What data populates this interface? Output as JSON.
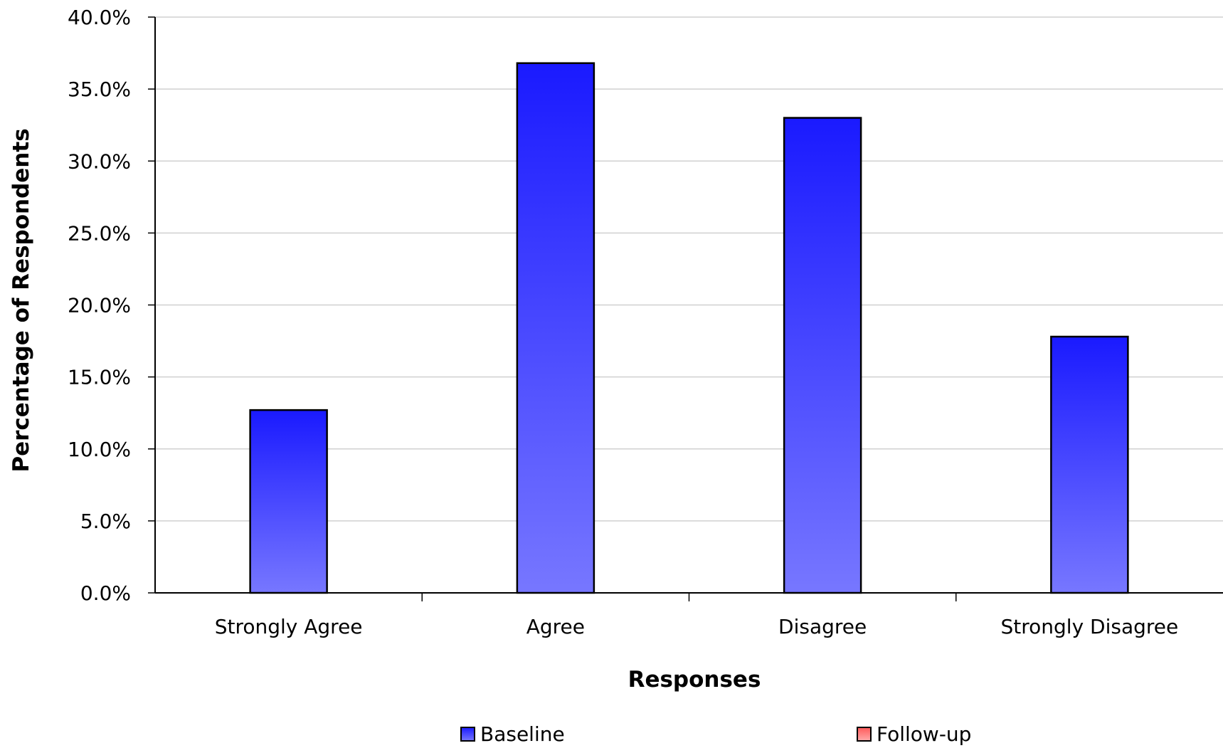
{
  "chart_data": {
    "type": "bar",
    "title": "",
    "xlabel": "Responses",
    "ylabel": "Percentage of Respondents",
    "categories": [
      "Strongly Agree",
      "Agree",
      "Disagree",
      "Strongly Disagree"
    ],
    "series": [
      {
        "name": "Baseline",
        "values": [
          12.7,
          36.8,
          33.0,
          17.8
        ],
        "color": "#1a1aff",
        "color_light": "#7777ff"
      },
      {
        "name": "Follow-up",
        "values": [
          null,
          null,
          null,
          null
        ],
        "color": "#ff5a5a",
        "color_light": "#ffaaaa"
      }
    ],
    "ylim": [
      0,
      40
    ],
    "yticks": [
      0,
      5,
      10,
      15,
      20,
      25,
      30,
      35,
      40
    ],
    "ytick_labels": [
      "0.0%",
      "5.0%",
      "10.0%",
      "15.0%",
      "20.0%",
      "25.0%",
      "30.0%",
      "35.0%",
      "40.0%"
    ],
    "grid": true,
    "legend_position": "bottom"
  }
}
